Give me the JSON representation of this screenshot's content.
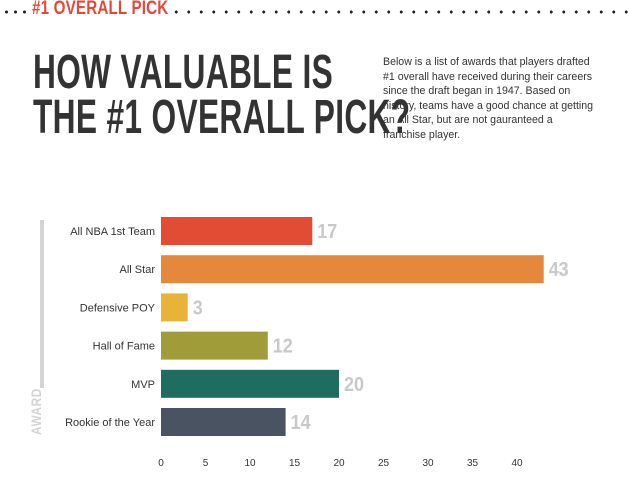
{
  "header": {
    "section_label": "#1 OVERALL PICK",
    "headline_line1": "HOW VALUABLE IS",
    "headline_line2": "THE #1 OVERALL PICK?",
    "description": "Below is a list of awards that players drafted #1 overall have received during their careers since the draft began in 1947. Based on history, teams have a good chance at getting an All Star, but are not gauranteed a franchise player."
  },
  "colors": {
    "accent": "#e2493a",
    "text": "#333333",
    "axis_gray": "#d4d4d4",
    "value_gray": "#c9c9c9"
  },
  "chart_data": {
    "type": "bar",
    "orientation": "horizontal",
    "ylabel": "AWARD",
    "categories": [
      "All NBA 1st Team",
      "All Star",
      "Defensive POY",
      "Hall of Fame",
      "MVP",
      "Rookie of the Year"
    ],
    "values": [
      17,
      43,
      3,
      12,
      20,
      14
    ],
    "bar_colors": [
      "#e24c35",
      "#e4883c",
      "#e8b339",
      "#a09c39",
      "#1f6d60",
      "#4a5362"
    ],
    "xticks": [
      0,
      5,
      10,
      15,
      20,
      25,
      30,
      35,
      40
    ],
    "xlim": [
      0,
      45
    ],
    "grid": false,
    "data_labels": true
  }
}
